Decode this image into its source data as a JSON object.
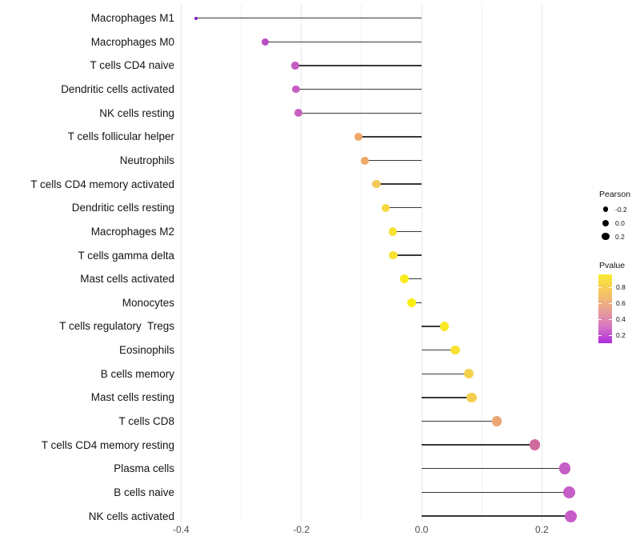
{
  "chart_data": {
    "type": "lollipop",
    "orientation": "horizontal",
    "title": "",
    "xlabel": "",
    "ylabel": "",
    "size_encoding": "Pearson",
    "color_encoding": "Pvalue",
    "xlim": [
      -0.42,
      0.28
    ],
    "x_ticks": [
      {
        "label": "-0.4",
        "value": -0.4
      },
      {
        "label": "-0.2",
        "value": -0.2
      },
      {
        "label": "0.0",
        "value": 0.0
      },
      {
        "label": "0.2",
        "value": 0.2
      }
    ],
    "gridlines": {
      "major": [
        -0.4,
        -0.2,
        0.0,
        0.2
      ],
      "minor": [
        -0.3,
        -0.1,
        0.1
      ]
    },
    "points": [
      {
        "label": "Macrophages M1",
        "pearson": -0.375,
        "color": "#7b1fc3",
        "diameter": 4
      },
      {
        "label": "Macrophages M0",
        "pearson": -0.26,
        "color": "#bb4ec5",
        "diameter": 9
      },
      {
        "label": "T cells CD4 naive",
        "pearson": -0.21,
        "color": "#c35cc0",
        "diameter": 9.5
      },
      {
        "label": "Dendritic cells activated",
        "pearson": -0.209,
        "color": "#c45dbf",
        "diameter": 9.5
      },
      {
        "label": "NK cells resting",
        "pearson": -0.205,
        "color": "#c660bd",
        "diameter": 10
      },
      {
        "label": "T cells follicular helper",
        "pearson": -0.105,
        "color": "#efa66b",
        "diameter": 10
      },
      {
        "label": "Neutrophils",
        "pearson": -0.094,
        "color": "#efa868",
        "diameter": 10
      },
      {
        "label": "T cells CD4 memory activated",
        "pearson": -0.075,
        "color": "#f3c95b",
        "diameter": 10.5
      },
      {
        "label": "Dendritic cells resting",
        "pearson": -0.06,
        "color": "#f6da40",
        "diameter": 10.5
      },
      {
        "label": "Macrophages M2",
        "pearson": -0.048,
        "color": "#f7e133",
        "diameter": 10.5
      },
      {
        "label": "T cells gamma delta",
        "pearson": -0.047,
        "color": "#f7e133",
        "diameter": 10.5
      },
      {
        "label": "Mast cells activated",
        "pearson": -0.029,
        "color": "#f9ec1d",
        "diameter": 11
      },
      {
        "label": "Monocytes",
        "pearson": -0.017,
        "color": "#faee15",
        "diameter": 11
      },
      {
        "label": "T cells regulatory  Tregs",
        "pearson": 0.038,
        "color": "#f8e828",
        "diameter": 11.5
      },
      {
        "label": "Eosinophils",
        "pearson": 0.056,
        "color": "#f7e234",
        "diameter": 11.5
      },
      {
        "label": "B cells memory",
        "pearson": 0.078,
        "color": "#f4d14b",
        "diameter": 12
      },
      {
        "label": "Mast cells resting",
        "pearson": 0.083,
        "color": "#f3ce4f",
        "diameter": 12.5
      },
      {
        "label": "T cells CD8",
        "pearson": 0.125,
        "color": "#eca673",
        "diameter": 12.5
      },
      {
        "label": "T cells CD4 memory resting",
        "pearson": 0.188,
        "color": "#d16a9f",
        "diameter": 13.5
      },
      {
        "label": "Plasma cells",
        "pearson": 0.238,
        "color": "#c55ec5",
        "diameter": 14.5
      },
      {
        "label": "B cells naive",
        "pearson": 0.245,
        "color": "#c55dc6",
        "diameter": 15
      },
      {
        "label": "NK cells activated",
        "pearson": 0.248,
        "color": "#c65cc7",
        "diameter": 15
      }
    ]
  },
  "legend": {
    "pearson": {
      "title": "Pearson",
      "dot_color": "#000000",
      "items": [
        {
          "label": "-0.2",
          "diameter": 6.5
        },
        {
          "label": "0.0",
          "diameter": 8
        },
        {
          "label": "0.2",
          "diameter": 9.5
        }
      ]
    },
    "pvalue": {
      "title": "Pvalue",
      "ticks": [
        "0.8",
        "0.6",
        "0.4",
        "0.2"
      ],
      "gradient": [
        "#f9ea33",
        "#f6c75f",
        "#e9a390",
        "#d878c0",
        "#ac2bdb"
      ]
    }
  },
  "style": {
    "stem_color": "#383838",
    "background": "#ffffff"
  }
}
